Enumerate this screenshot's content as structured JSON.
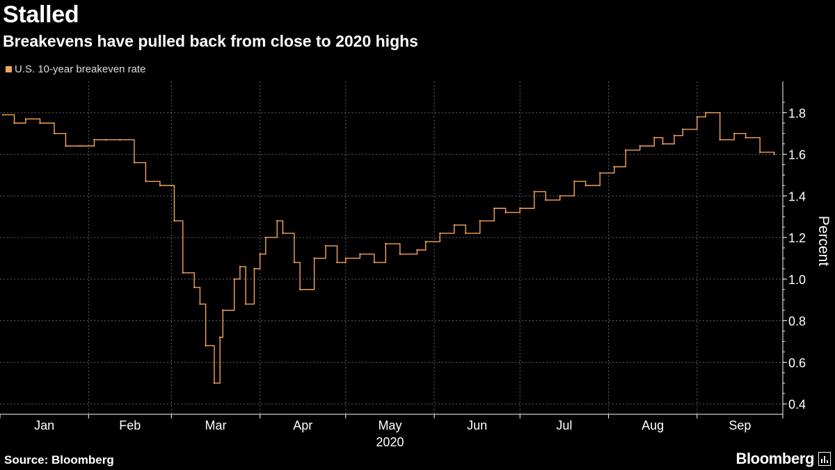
{
  "header": {
    "title": "Stalled",
    "subtitle": "Breakevens have pulled back from close to 2020 highs"
  },
  "footer": {
    "source": "Source: Bloomberg",
    "logo_text": "Bloomberg"
  },
  "colors": {
    "background": "#000000",
    "series": "#f7a55a",
    "grid": "#666666",
    "text": "#ffffff"
  },
  "chart_data": {
    "type": "line",
    "title": "Stalled",
    "subtitle": "Breakevens have pulled back from close to 2020 highs",
    "ylabel": "Percent",
    "xlabel": "2020",
    "ylim": [
      0.35,
      1.95
    ],
    "y_ticks": [
      0.4,
      0.6,
      0.8,
      1.0,
      1.2,
      1.4,
      1.6,
      1.8
    ],
    "y_tick_labels": [
      "0.4",
      "0.6",
      "0.8",
      "1.0",
      "1.2",
      "1.4",
      "1.6",
      "1.8"
    ],
    "x_tick_labels": [
      "Jan",
      "Feb",
      "Mar",
      "Apr",
      "May",
      "Jun",
      "Jul",
      "Aug",
      "Sep"
    ],
    "x_sublabel": "2020",
    "grid": true,
    "legend_position": "top-left",
    "series": [
      {
        "name": "U.S. 10-year breakeven rate",
        "color": "#f7a55a",
        "x": [
          "2020-01-02",
          "2020-01-06",
          "2020-01-10",
          "2020-01-15",
          "2020-01-20",
          "2020-01-24",
          "2020-01-29",
          "2020-02-03",
          "2020-02-07",
          "2020-02-12",
          "2020-02-17",
          "2020-02-21",
          "2020-02-26",
          "2020-03-02",
          "2020-03-05",
          "2020-03-09",
          "2020-03-11",
          "2020-03-13",
          "2020-03-16",
          "2020-03-18",
          "2020-03-19",
          "2020-03-23",
          "2020-03-25",
          "2020-03-27",
          "2020-03-30",
          "2020-04-01",
          "2020-04-03",
          "2020-04-07",
          "2020-04-09",
          "2020-04-13",
          "2020-04-15",
          "2020-04-20",
          "2020-04-24",
          "2020-04-28",
          "2020-05-01",
          "2020-05-06",
          "2020-05-11",
          "2020-05-15",
          "2020-05-20",
          "2020-05-26",
          "2020-05-29",
          "2020-06-03",
          "2020-06-08",
          "2020-06-12",
          "2020-06-17",
          "2020-06-22",
          "2020-06-26",
          "2020-07-01",
          "2020-07-06",
          "2020-07-10",
          "2020-07-15",
          "2020-07-20",
          "2020-07-24",
          "2020-07-29",
          "2020-08-03",
          "2020-08-07",
          "2020-08-12",
          "2020-08-17",
          "2020-08-20",
          "2020-08-24",
          "2020-08-27",
          "2020-09-01",
          "2020-09-04",
          "2020-09-09",
          "2020-09-14",
          "2020-09-18",
          "2020-09-23",
          "2020-09-28"
        ],
        "values": [
          1.79,
          1.75,
          1.77,
          1.75,
          1.7,
          1.64,
          1.64,
          1.67,
          1.67,
          1.67,
          1.56,
          1.47,
          1.45,
          1.28,
          1.03,
          0.96,
          0.88,
          0.68,
          0.5,
          0.72,
          0.85,
          1.0,
          1.06,
          0.88,
          1.05,
          1.12,
          1.2,
          1.28,
          1.22,
          1.08,
          0.95,
          1.1,
          1.16,
          1.08,
          1.1,
          1.12,
          1.08,
          1.17,
          1.12,
          1.14,
          1.18,
          1.22,
          1.26,
          1.22,
          1.28,
          1.34,
          1.32,
          1.34,
          1.42,
          1.38,
          1.4,
          1.47,
          1.45,
          1.51,
          1.54,
          1.62,
          1.64,
          1.68,
          1.65,
          1.69,
          1.72,
          1.78,
          1.8,
          1.67,
          1.7,
          1.68,
          1.61,
          1.6
        ]
      }
    ]
  }
}
